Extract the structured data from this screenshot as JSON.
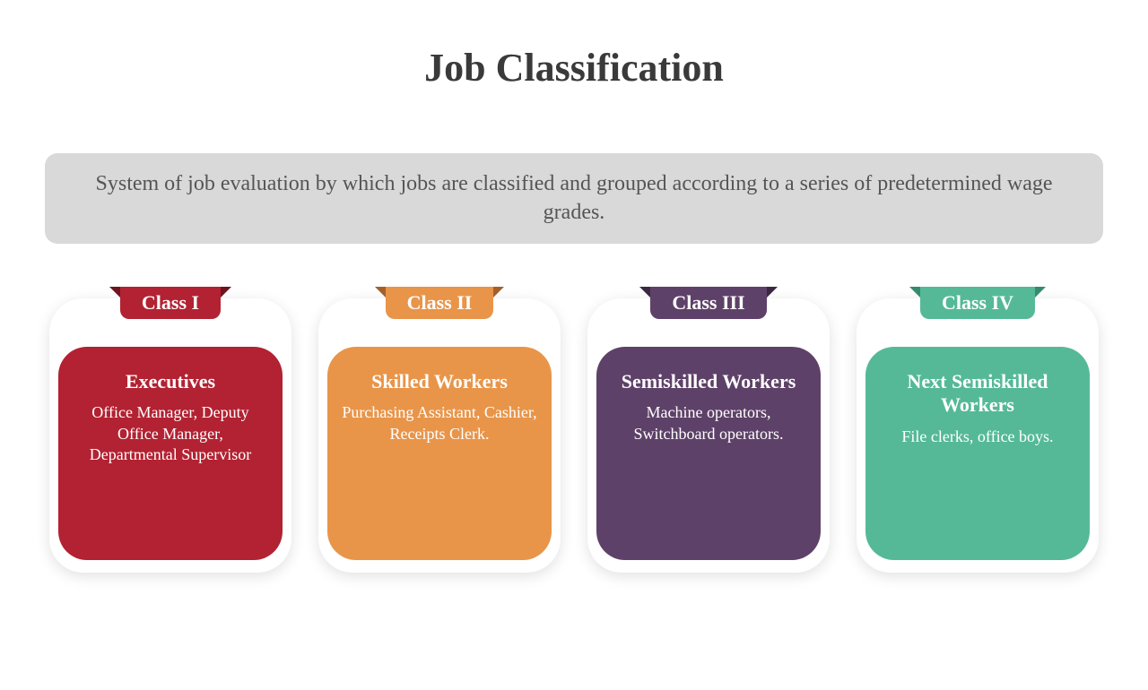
{
  "title": "Job Classification",
  "subtitle": "System of job evaluation by which jobs are classified and grouped according to a series of predetermined wage grades.",
  "colors": {
    "background": "#ffffff",
    "title_color": "#3a3a3a",
    "subtitle_bg": "#d9d9d9",
    "subtitle_color": "#555555"
  },
  "typography": {
    "title_fontsize": 44,
    "subtitle_fontsize": 24,
    "tab_fontsize": 22,
    "heading_fontsize": 22,
    "desc_fontsize": 18,
    "font_family": "Georgia, serif"
  },
  "layout": {
    "card_outer_radius": 38,
    "card_inner_radius": 32,
    "subtitle_radius": 14,
    "card_min_height": 238
  },
  "cards": [
    {
      "tab": "Class I",
      "heading": "Executives",
      "desc": "Office Manager, Deputy Office Manager, Departmental Supervisor",
      "color": "#b22232",
      "fold_color": "#6d1420"
    },
    {
      "tab": "Class II",
      "heading": "Skilled Workers",
      "desc": "Purchasing Assistant, Cashier, Receipts Clerk.",
      "color": "#e8954a",
      "fold_color": "#a3602a"
    },
    {
      "tab": "Class III",
      "heading": "Semiskilled Workers",
      "desc": "Machine operators, Switchboard operators.",
      "color": "#5e4168",
      "fold_color": "#3a2840"
    },
    {
      "tab": "Class IV",
      "heading": "Next Semiskilled Workers",
      "desc": "File clerks, office boys.",
      "color": "#55b998",
      "fold_color": "#368a6e"
    }
  ]
}
